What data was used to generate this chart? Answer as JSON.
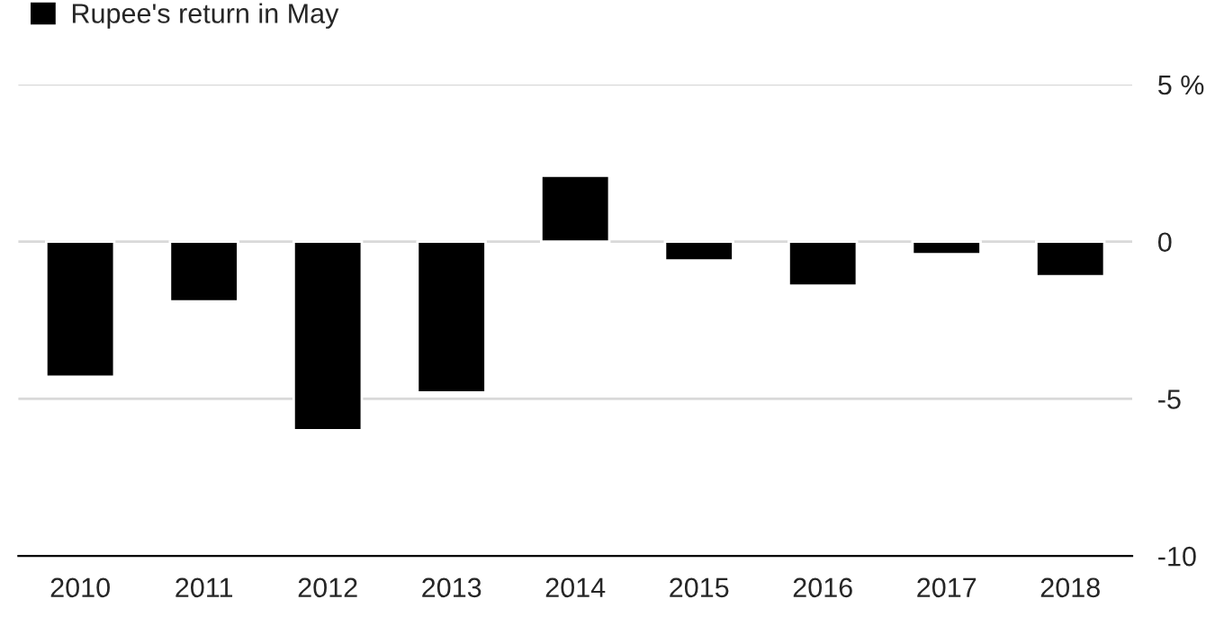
{
  "chart_data": {
    "type": "bar",
    "categories": [
      "2010",
      "2011",
      "2012",
      "2013",
      "2014",
      "2015",
      "2016",
      "2017",
      "2018"
    ],
    "series": [
      {
        "name": "Rupee's return in May",
        "color": "#000000",
        "values": [
          -4.3,
          -1.9,
          -6.0,
          -4.8,
          2.1,
          -0.6,
          -1.4,
          -0.4,
          -1.1
        ]
      }
    ],
    "ylim": [
      -10,
      5
    ],
    "yticks": [
      {
        "value": 5,
        "label": "5 %"
      },
      0,
      -5,
      -10
    ],
    "grid": "y",
    "legend": "top left"
  }
}
